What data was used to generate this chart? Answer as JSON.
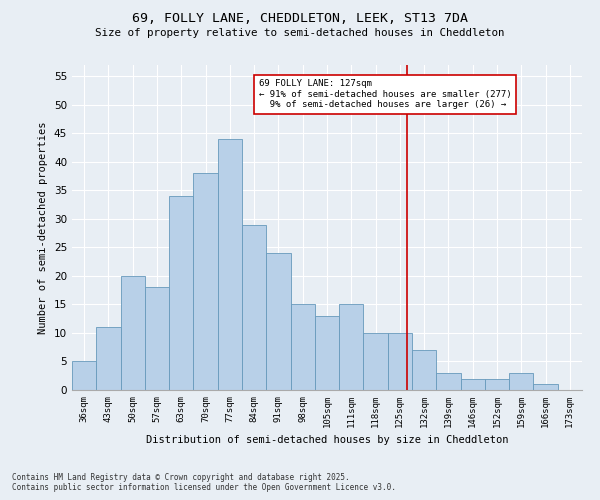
{
  "title": "69, FOLLY LANE, CHEDDLETON, LEEK, ST13 7DA",
  "subtitle": "Size of property relative to semi-detached houses in Cheddleton",
  "xlabel": "Distribution of semi-detached houses by size in Cheddleton",
  "ylabel": "Number of semi-detached properties",
  "categories": [
    "36sqm",
    "43sqm",
    "50sqm",
    "57sqm",
    "63sqm",
    "70sqm",
    "77sqm",
    "84sqm",
    "91sqm",
    "98sqm",
    "105sqm",
    "111sqm",
    "118sqm",
    "125sqm",
    "132sqm",
    "139sqm",
    "146sqm",
    "152sqm",
    "159sqm",
    "166sqm",
    "173sqm"
  ],
  "values": [
    5,
    11,
    20,
    18,
    34,
    38,
    44,
    29,
    24,
    15,
    13,
    15,
    10,
    10,
    7,
    3,
    2,
    2,
    3,
    1,
    0
  ],
  "bar_color": "#b8d0e8",
  "bar_edge_color": "#6699bb",
  "ylim": [
    0,
    57
  ],
  "yticks": [
    0,
    5,
    10,
    15,
    20,
    25,
    30,
    35,
    40,
    45,
    50,
    55
  ],
  "property_value": 127,
  "property_label": "69 FOLLY LANE: 127sqm",
  "pct_smaller": 91,
  "count_smaller": 277,
  "pct_larger": 9,
  "count_larger": 26,
  "vline_color": "#cc0000",
  "annotation_box_color": "#cc0000",
  "background_color": "#e8eef4",
  "grid_color": "#ffffff",
  "footer_line1": "Contains HM Land Registry data © Crown copyright and database right 2025.",
  "footer_line2": "Contains public sector information licensed under the Open Government Licence v3.0."
}
